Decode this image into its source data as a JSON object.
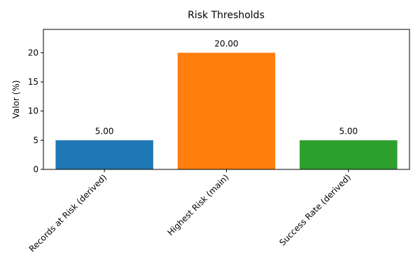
{
  "chart_data": {
    "type": "bar",
    "title": "Risk Thresholds",
    "xlabel": "",
    "ylabel": "Valor (%)",
    "categories": [
      "Records at Risk (derived)",
      "Highest Risk (main)",
      "Success Rate (derived)"
    ],
    "values": [
      5,
      20,
      5
    ],
    "value_labels": [
      "5.00",
      "20.00",
      "5.00"
    ],
    "colors": [
      "#1f77b4",
      "#ff7f0e",
      "#2ca02c"
    ],
    "ylim": [
      0,
      24
    ],
    "yticks": [
      0,
      5,
      10,
      15,
      20
    ],
    "grid": false,
    "legend": "none",
    "xtick_rotation": 45
  }
}
